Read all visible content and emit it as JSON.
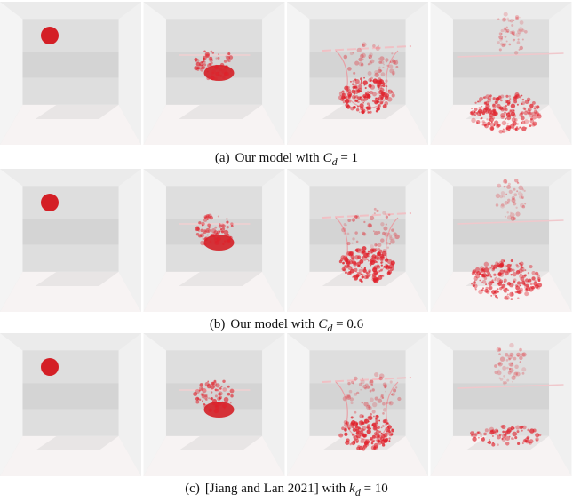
{
  "figures": [
    {
      "label": "(a)",
      "caption": "Our model with",
      "symbol": "C",
      "subscript": "d",
      "relation": "= 1"
    },
    {
      "label": "(b)",
      "caption": "Our model with",
      "symbol": "C",
      "subscript": "d",
      "relation": "= 0.6"
    },
    {
      "label": "(c)",
      "caption": "[Jiang and Lan 2021] with",
      "symbol": "k",
      "subscript": "d",
      "relation": "= 10"
    }
  ]
}
